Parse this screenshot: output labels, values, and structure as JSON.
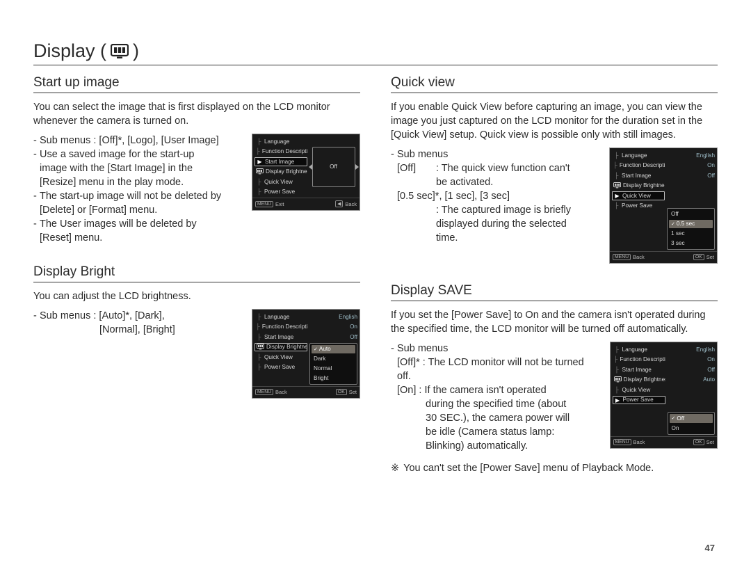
{
  "page": {
    "title_prefix": "Display (",
    "title_suffix": " )",
    "page_number": "47"
  },
  "shot_common": {
    "menu_items": [
      "Language",
      "Function Description",
      "Start Image",
      "Display  Brightness",
      "Quick View",
      "Power Save"
    ],
    "display_badge_row": 3,
    "footer_exit": "Exit",
    "footer_back": "Back",
    "footer_set": "Set",
    "btn_menu": "MENU",
    "btn_ok": "OK",
    "btn_back_arrow": "◀"
  },
  "startup": {
    "heading": "Start up image",
    "intro": "You can select the image that is first displayed on the LCD monitor whenever the camera is turned on.",
    "b1": "Sub menus : [Off]*, [Logo], [User Image]",
    "b2a": "Use a saved image for the start-up",
    "b2b": "image with the [Start Image] in the",
    "b2c": "[Resize] menu in the play mode.",
    "b3a": "The start-up image will not be deleted by",
    "b3b": "[Delete] or [Format] menu.",
    "b4a": "The User images will be deleted by",
    "b4b": "[Reset] menu.",
    "shot": {
      "selected_index": 2,
      "preview_label": "Off",
      "foot_left": "Exit",
      "foot_right": "Back",
      "foot_left_btn": "MENU",
      "foot_right_btn": "◀"
    }
  },
  "bright": {
    "heading": "Display Bright",
    "intro": "You can adjust the LCD brightness.",
    "b1a": "Sub menus : [Auto]*, [Dark],",
    "b1b": "[Normal], [Bright]",
    "shot": {
      "selected_index": 3,
      "right_values": [
        "English",
        "On",
        "Off"
      ],
      "options": [
        "Auto",
        "Dark",
        "Normal",
        "Bright"
      ],
      "highlight": 0,
      "foot_left": "Back",
      "foot_right": "Set",
      "foot_left_btn": "MENU",
      "foot_right_btn": "OK"
    }
  },
  "quick": {
    "heading": "Quick view",
    "intro": "If you enable Quick View before capturing an image, you can view the image you just captured on the LCD monitor for the duration set in the [Quick View] setup. Quick view is possible only with still images.",
    "sub_label": "Sub menus",
    "r1k": "[Off]",
    "r1a": ": The quick view function can't",
    "r1b": "be activated.",
    "r2": "[0.5 sec]*, [1 sec], [3 sec]",
    "r2a": ": The captured image is briefly",
    "r2b": "displayed during the selected",
    "r2c": "time.",
    "shot": {
      "selected_index": 4,
      "right_values": [
        "English",
        "On",
        "Off"
      ],
      "options": [
        "Off",
        "0.5 sec",
        "1 sec",
        "3 sec"
      ],
      "highlight": 1,
      "foot_left": "Back",
      "foot_right": "Set",
      "foot_left_btn": "MENU",
      "foot_right_btn": "OK"
    }
  },
  "save": {
    "heading": "Display SAVE",
    "intro": "If you set the [Power Save] to On and the camera isn't operated during the specified time, the LCD monitor will be turned off automatically.",
    "sub_label": "Sub menus",
    "r1": "[Off]* : The LCD monitor will not be turned off.",
    "r2a": "[On] : If the camera isn't operated",
    "r2b": "during the specified time (about",
    "r2c": "30 SEC.), the camera power will",
    "r2d": "be idle (Camera status lamp:",
    "r2e": "Blinking) automatically.",
    "note_mark": "※",
    "note": "You can't set the [Power Save] menu of Playback Mode.",
    "shot": {
      "selected_index": 5,
      "right_values": [
        "English",
        "On",
        "Off",
        "Auto"
      ],
      "options": [
        "Off",
        "On"
      ],
      "highlight": 0,
      "foot_left": "Back",
      "foot_right": "Set",
      "foot_left_btn": "MENU",
      "foot_right_btn": "OK"
    }
  }
}
